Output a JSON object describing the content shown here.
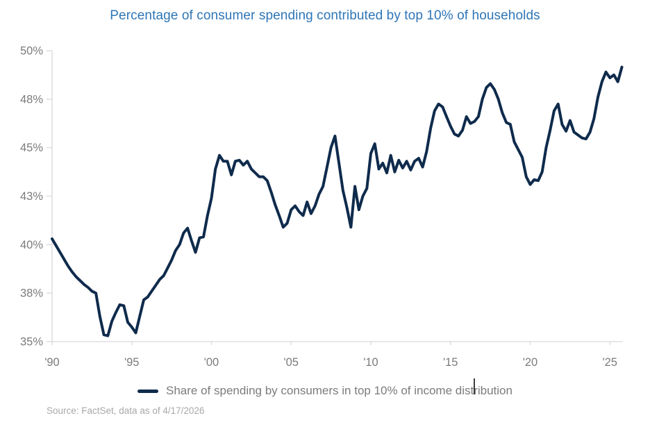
{
  "chart": {
    "title": "Percentage of consumer spending contributed by top 10% of households"
  },
  "legend": {
    "label": "Share of spending by consumers in top 10% of income distribution"
  },
  "source": {
    "text": "Source: FactSet, data as of 4/17/2026"
  },
  "colors": {
    "title_blue": "#2E75B6",
    "line_navy": "#0F2B4C",
    "axis_line_gray": "#D9D9D9",
    "tick_label_gray": "#7B7B7B",
    "source_gray": "#A8A8A8",
    "caret_dark": "#3D3D3D"
  },
  "chart_data": {
    "type": "line",
    "title": "Percentage of consumer spending contributed by top 10% of households",
    "xlabel": "",
    "ylabel": "",
    "xlim": [
      1990,
      2026
    ],
    "ylim": [
      35,
      50
    ],
    "grid": false,
    "legend_position": "bottom",
    "x_ticks": [
      {
        "label": "'90",
        "year": 1990
      },
      {
        "label": "'95",
        "year": 1995
      },
      {
        "label": "'00",
        "year": 2000
      },
      {
        "label": "'05",
        "year": 2005
      },
      {
        "label": "'10",
        "year": 2010
      },
      {
        "label": "'15",
        "year": 2015
      },
      {
        "label": "'20",
        "year": 2020
      },
      {
        "label": "'25",
        "year": 2025
      }
    ],
    "y_ticks": [
      {
        "label": "50%",
        "value": 50
      },
      {
        "label": "48%",
        "value": 47.5
      },
      {
        "label": "45%",
        "value": 45
      },
      {
        "label": "43%",
        "value": 42.5
      },
      {
        "label": "40%",
        "value": 40
      },
      {
        "label": "38%",
        "value": 37.5
      },
      {
        "label": "35%",
        "value": 35
      }
    ],
    "series": [
      {
        "name": "Share of spending by consumers in top 10% of income distribution",
        "unit": "%",
        "x_start": 1990.0,
        "x_step": 0.25,
        "values": [
          40.3,
          39.95,
          39.6,
          39.25,
          38.9,
          38.6,
          38.35,
          38.15,
          37.95,
          37.8,
          37.6,
          37.5,
          36.3,
          35.35,
          35.3,
          36.05,
          36.5,
          36.9,
          36.85,
          36.0,
          35.75,
          35.45,
          36.3,
          37.15,
          37.3,
          37.6,
          37.9,
          38.2,
          38.4,
          38.8,
          39.2,
          39.7,
          40.0,
          40.6,
          40.85,
          40.2,
          39.6,
          40.35,
          40.4,
          41.5,
          42.4,
          43.9,
          44.6,
          44.3,
          44.3,
          43.6,
          44.3,
          44.35,
          44.1,
          44.3,
          43.9,
          43.7,
          43.5,
          43.5,
          43.3,
          42.7,
          42.05,
          41.5,
          40.9,
          41.1,
          41.8,
          42.0,
          41.7,
          41.5,
          42.2,
          41.6,
          42.0,
          42.6,
          43.0,
          44.0,
          45.0,
          45.6,
          44.2,
          42.8,
          41.9,
          40.9,
          43.0,
          41.8,
          42.5,
          42.9,
          44.7,
          45.2,
          43.9,
          44.2,
          43.7,
          44.6,
          43.75,
          44.35,
          43.95,
          44.3,
          43.85,
          44.3,
          44.45,
          44.0,
          44.8,
          46.0,
          46.9,
          47.25,
          47.1,
          46.6,
          46.1,
          45.7,
          45.6,
          45.9,
          46.6,
          46.25,
          46.35,
          46.6,
          47.5,
          48.1,
          48.3,
          48.0,
          47.5,
          46.8,
          46.3,
          46.2,
          45.3,
          44.9,
          44.5,
          43.5,
          43.1,
          43.35,
          43.3,
          43.75,
          45.0,
          45.9,
          46.9,
          47.25,
          46.2,
          45.85,
          46.4,
          45.8,
          45.65,
          45.5,
          45.45,
          45.8,
          46.5,
          47.6,
          48.4,
          48.9,
          48.6,
          48.75,
          48.4,
          49.15
        ]
      }
    ]
  }
}
